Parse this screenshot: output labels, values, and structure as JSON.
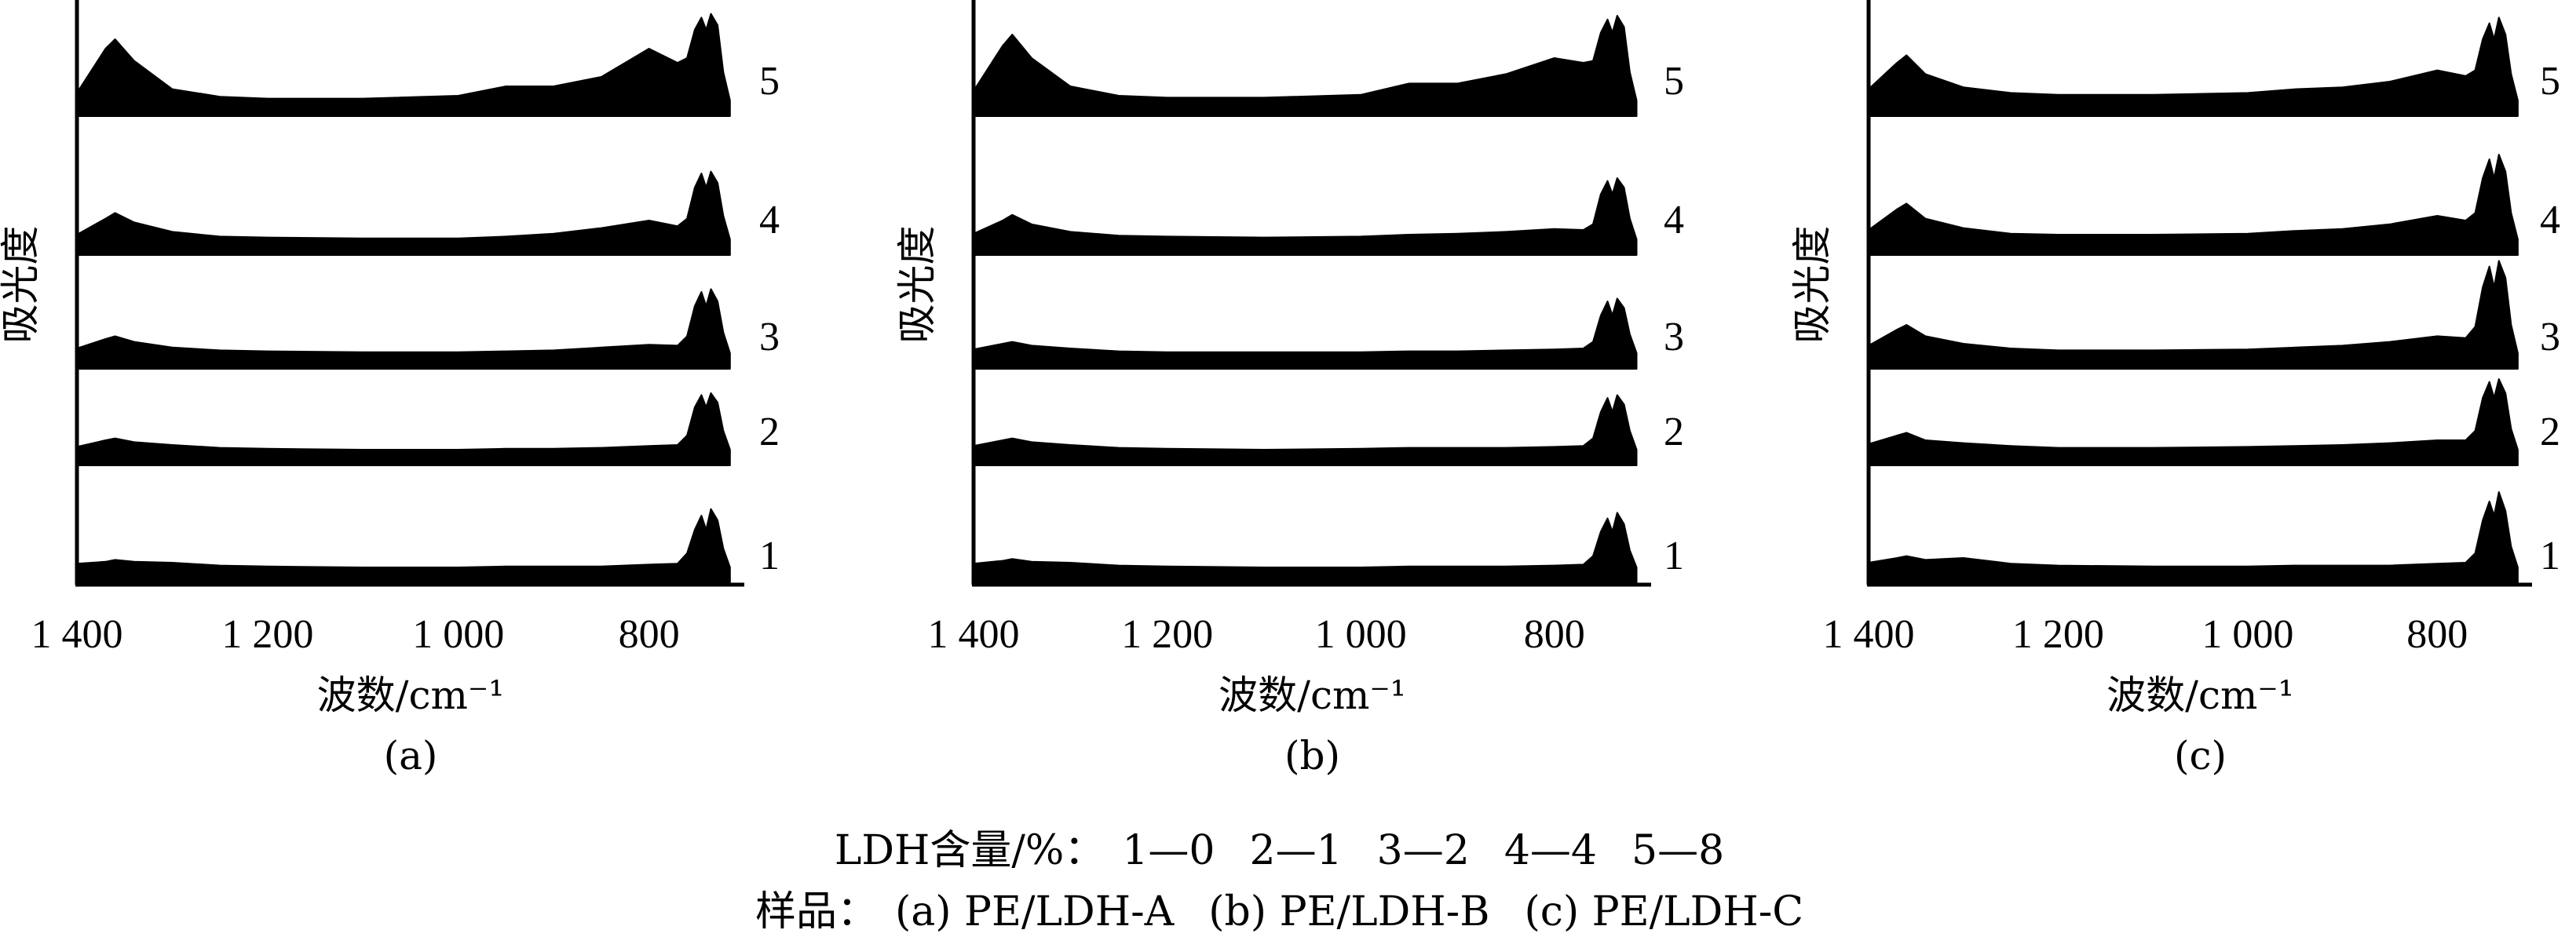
{
  "chart_data": [
    {
      "type": "line",
      "panel_label": "(a)",
      "xlabel": "波数/cm⁻¹",
      "ylabel": "吸光度",
      "x_reversed": true,
      "xlim": [
        1400,
        700
      ],
      "x_ticks": [
        1400,
        1200,
        1000,
        800
      ],
      "x_tick_labels": [
        "1 400",
        "1 200",
        "1 000",
        "800"
      ],
      "grid": false,
      "series": [
        {
          "name": "1",
          "x": [
            1400,
            1370,
            1360,
            1340,
            1300,
            1250,
            1200,
            1100,
            1000,
            950,
            900,
            850,
            800,
            770,
            760,
            752,
            745,
            740,
            735,
            728,
            722,
            715
          ],
          "y": [
            0.04,
            0.06,
            0.08,
            0.06,
            0.05,
            0.02,
            0.01,
            0.0,
            0.0,
            0.01,
            0.01,
            0.01,
            0.03,
            0.04,
            0.15,
            0.4,
            0.55,
            0.4,
            0.62,
            0.5,
            0.2,
            0.0
          ]
        },
        {
          "name": "2",
          "x": [
            1400,
            1370,
            1360,
            1340,
            1300,
            1250,
            1200,
            1100,
            1000,
            950,
            900,
            850,
            800,
            770,
            760,
            752,
            745,
            740,
            735,
            728,
            722,
            715
          ],
          "y": [
            0.03,
            0.1,
            0.12,
            0.08,
            0.05,
            0.02,
            0.01,
            0.0,
            0.0,
            0.01,
            0.01,
            0.02,
            0.04,
            0.05,
            0.15,
            0.45,
            0.58,
            0.45,
            0.6,
            0.5,
            0.2,
            0.0
          ]
        },
        {
          "name": "3",
          "x": [
            1400,
            1370,
            1360,
            1340,
            1300,
            1250,
            1200,
            1100,
            1000,
            950,
            900,
            850,
            800,
            770,
            760,
            752,
            745,
            740,
            735,
            728,
            722,
            715
          ],
          "y": [
            0.05,
            0.15,
            0.18,
            0.12,
            0.06,
            0.03,
            0.02,
            0.01,
            0.01,
            0.02,
            0.03,
            0.06,
            0.09,
            0.08,
            0.18,
            0.5,
            0.65,
            0.5,
            0.68,
            0.55,
            0.22,
            0.0
          ]
        },
        {
          "name": "4",
          "x": [
            1400,
            1370,
            1360,
            1340,
            1300,
            1250,
            1200,
            1100,
            1000,
            950,
            900,
            850,
            800,
            770,
            760,
            752,
            745,
            740,
            735,
            728,
            722,
            715
          ],
          "y": [
            0.05,
            0.22,
            0.28,
            0.18,
            0.08,
            0.03,
            0.02,
            0.01,
            0.01,
            0.03,
            0.06,
            0.12,
            0.2,
            0.14,
            0.22,
            0.55,
            0.7,
            0.55,
            0.72,
            0.6,
            0.25,
            0.0
          ]
        },
        {
          "name": "5",
          "x": [
            1400,
            1370,
            1360,
            1340,
            1300,
            1250,
            1200,
            1100,
            1000,
            950,
            900,
            850,
            800,
            770,
            760,
            752,
            745,
            740,
            735,
            728,
            722,
            715
          ],
          "y": [
            0.08,
            0.55,
            0.65,
            0.42,
            0.12,
            0.04,
            0.02,
            0.02,
            0.05,
            0.15,
            0.15,
            0.25,
            0.55,
            0.4,
            0.45,
            0.75,
            0.88,
            0.75,
            0.92,
            0.8,
            0.3,
            0.0
          ]
        }
      ]
    },
    {
      "type": "line",
      "panel_label": "(b)",
      "xlabel": "波数/cm⁻¹",
      "ylabel": "吸光度",
      "x_reversed": true,
      "xlim": [
        1400,
        700
      ],
      "x_ticks": [
        1400,
        1200,
        1000,
        800
      ],
      "x_tick_labels": [
        "1 400",
        "1 200",
        "1 000",
        "800"
      ],
      "grid": false,
      "series": [
        {
          "name": "1",
          "x": [
            1400,
            1370,
            1360,
            1340,
            1300,
            1250,
            1200,
            1100,
            1000,
            950,
            900,
            850,
            800,
            770,
            760,
            752,
            745,
            740,
            735,
            728,
            722,
            715
          ],
          "y": [
            0.04,
            0.07,
            0.09,
            0.06,
            0.05,
            0.02,
            0.01,
            0.0,
            0.0,
            0.01,
            0.01,
            0.01,
            0.02,
            0.03,
            0.12,
            0.38,
            0.52,
            0.38,
            0.58,
            0.46,
            0.18,
            0.0
          ]
        },
        {
          "name": "2",
          "x": [
            1400,
            1370,
            1360,
            1340,
            1300,
            1250,
            1200,
            1100,
            1000,
            950,
            900,
            850,
            800,
            770,
            760,
            752,
            745,
            740,
            735,
            728,
            722,
            715
          ],
          "y": [
            0.04,
            0.1,
            0.12,
            0.08,
            0.05,
            0.02,
            0.01,
            0.0,
            0.01,
            0.02,
            0.02,
            0.02,
            0.03,
            0.04,
            0.12,
            0.4,
            0.55,
            0.4,
            0.58,
            0.48,
            0.2,
            0.0
          ]
        },
        {
          "name": "3",
          "x": [
            1400,
            1370,
            1360,
            1340,
            1300,
            1250,
            1200,
            1100,
            1000,
            950,
            900,
            850,
            800,
            770,
            760,
            752,
            745,
            740,
            735,
            728,
            722,
            715
          ],
          "y": [
            0.04,
            0.1,
            0.12,
            0.08,
            0.05,
            0.02,
            0.01,
            0.01,
            0.01,
            0.02,
            0.02,
            0.03,
            0.04,
            0.05,
            0.12,
            0.4,
            0.55,
            0.4,
            0.58,
            0.48,
            0.2,
            0.0
          ]
        },
        {
          "name": "4",
          "x": [
            1400,
            1370,
            1360,
            1340,
            1300,
            1250,
            1200,
            1100,
            1000,
            950,
            900,
            850,
            800,
            770,
            760,
            752,
            745,
            740,
            735,
            728,
            722,
            715
          ],
          "y": [
            0.06,
            0.2,
            0.26,
            0.16,
            0.08,
            0.04,
            0.03,
            0.02,
            0.03,
            0.05,
            0.06,
            0.08,
            0.11,
            0.1,
            0.16,
            0.48,
            0.62,
            0.48,
            0.65,
            0.55,
            0.22,
            0.0
          ]
        },
        {
          "name": "5",
          "x": [
            1400,
            1370,
            1360,
            1340,
            1300,
            1250,
            1200,
            1100,
            1000,
            950,
            900,
            850,
            800,
            770,
            760,
            752,
            745,
            740,
            735,
            728,
            722,
            715
          ],
          "y": [
            0.1,
            0.58,
            0.7,
            0.45,
            0.15,
            0.05,
            0.03,
            0.03,
            0.06,
            0.18,
            0.18,
            0.28,
            0.45,
            0.4,
            0.42,
            0.72,
            0.86,
            0.72,
            0.9,
            0.78,
            0.3,
            0.0
          ]
        }
      ]
    },
    {
      "type": "line",
      "panel_label": "(c)",
      "xlabel": "波数/cm⁻¹",
      "ylabel": "吸光度",
      "x_reversed": true,
      "xlim": [
        1400,
        700
      ],
      "x_ticks": [
        1400,
        1200,
        1000,
        800
      ],
      "x_tick_labels": [
        "1 400",
        "1 200",
        "1 000",
        "800"
      ],
      "grid": false,
      "series": [
        {
          "name": "1",
          "x": [
            1400,
            1370,
            1360,
            1340,
            1300,
            1250,
            1200,
            1100,
            1000,
            950,
            900,
            850,
            800,
            770,
            760,
            752,
            745,
            740,
            735,
            728,
            722,
            715
          ],
          "y": [
            0.05,
            0.1,
            0.12,
            0.08,
            0.1,
            0.04,
            0.02,
            0.01,
            0.01,
            0.02,
            0.02,
            0.02,
            0.04,
            0.05,
            0.15,
            0.5,
            0.7,
            0.55,
            0.8,
            0.6,
            0.22,
            0.0
          ]
        },
        {
          "name": "2",
          "x": [
            1400,
            1370,
            1360,
            1340,
            1300,
            1250,
            1200,
            1100,
            1000,
            950,
            900,
            850,
            800,
            770,
            760,
            752,
            745,
            740,
            735,
            728,
            722,
            715
          ],
          "y": [
            0.06,
            0.15,
            0.18,
            0.1,
            0.07,
            0.04,
            0.02,
            0.02,
            0.03,
            0.04,
            0.05,
            0.07,
            0.1,
            0.1,
            0.2,
            0.55,
            0.72,
            0.55,
            0.75,
            0.6,
            0.22,
            0.0
          ]
        },
        {
          "name": "3",
          "x": [
            1400,
            1370,
            1360,
            1340,
            1300,
            1250,
            1200,
            1100,
            1000,
            950,
            900,
            850,
            800,
            770,
            760,
            752,
            745,
            740,
            735,
            728,
            722,
            715
          ],
          "y": [
            0.08,
            0.25,
            0.3,
            0.18,
            0.1,
            0.05,
            0.03,
            0.03,
            0.04,
            0.06,
            0.08,
            0.12,
            0.18,
            0.16,
            0.28,
            0.7,
            0.92,
            0.7,
            0.98,
            0.8,
            0.3,
            0.0
          ]
        },
        {
          "name": "4",
          "x": [
            1400,
            1370,
            1360,
            1340,
            1300,
            1250,
            1200,
            1100,
            1000,
            950,
            900,
            850,
            800,
            770,
            760,
            752,
            745,
            740,
            735,
            728,
            722,
            715
          ],
          "y": [
            0.1,
            0.32,
            0.38,
            0.22,
            0.12,
            0.06,
            0.05,
            0.05,
            0.06,
            0.09,
            0.11,
            0.16,
            0.25,
            0.2,
            0.28,
            0.65,
            0.85,
            0.65,
            0.9,
            0.72,
            0.28,
            0.0
          ]
        },
        {
          "name": "5",
          "x": [
            1400,
            1370,
            1360,
            1340,
            1300,
            1250,
            1200,
            1100,
            1000,
            950,
            900,
            850,
            800,
            770,
            760,
            752,
            745,
            740,
            735,
            728,
            722,
            715
          ],
          "y": [
            0.12,
            0.4,
            0.48,
            0.28,
            0.14,
            0.08,
            0.06,
            0.06,
            0.08,
            0.12,
            0.14,
            0.2,
            0.32,
            0.26,
            0.32,
            0.65,
            0.82,
            0.65,
            0.88,
            0.7,
            0.28,
            0.0
          ]
        }
      ]
    }
  ],
  "caption": {
    "line1_prefix": "LDH含量/%：",
    "line1_items": [
      "1—0",
      "2—1",
      "3—2",
      "4—4",
      "5—8"
    ],
    "line2_prefix": "样品：",
    "line2_items": [
      "(a) PE/LDH-A",
      "(b) PE/LDH-B",
      "(c) PE/LDH-C"
    ]
  }
}
